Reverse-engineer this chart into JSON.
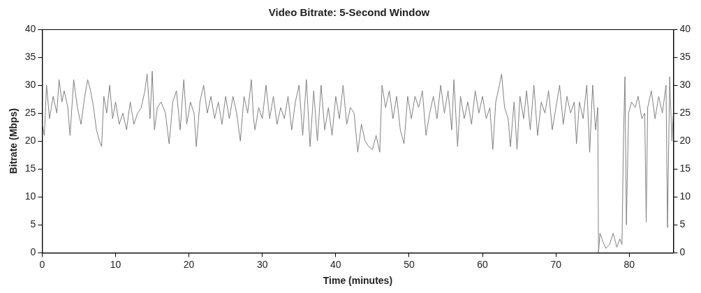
{
  "chart_data": {
    "type": "line",
    "title": "Video Bitrate: 5-Second Window",
    "xlabel": "Time (minutes)",
    "ylabel": "Bitrate (Mbps)",
    "xlim": [
      0,
      86
    ],
    "xticks": [
      0,
      10,
      20,
      30,
      40,
      50,
      60,
      70,
      80
    ],
    "ylim": [
      0,
      40
    ],
    "yticks": [
      0,
      5,
      10,
      15,
      20,
      25,
      30,
      35,
      40
    ],
    "y2lim": [
      0,
      40
    ],
    "y2ticks": [
      0,
      5,
      10,
      15,
      20,
      25,
      30,
      35,
      40
    ],
    "grid": false,
    "legend": false,
    "marker": "none",
    "line_style": "solid",
    "series": [
      {
        "color": "#808080",
        "x": [
          0,
          0.3,
          0.6,
          1,
          1.5,
          2,
          2.3,
          2.7,
          3,
          3.5,
          3.8,
          4.3,
          4.8,
          5.3,
          5.8,
          6.2,
          6.6,
          7,
          7.4,
          7.8,
          8.1,
          8.4,
          8.8,
          9.2,
          9.6,
          10,
          10.5,
          11,
          11.5,
          12,
          12.5,
          13,
          13.5,
          14,
          14.3,
          14.7,
          15,
          15.3,
          15.7,
          16.2,
          16.8,
          17.3,
          17.8,
          18.3,
          18.8,
          19.3,
          19.7,
          20.2,
          20.7,
          21,
          21.5,
          22,
          22.5,
          23,
          23.5,
          24,
          24.5,
          25,
          25.5,
          26,
          26.5,
          27,
          27.5,
          28,
          28.5,
          28.8,
          29,
          29.5,
          30,
          30.5,
          31,
          31.5,
          32,
          32.5,
          33,
          33.5,
          34,
          34.5,
          35,
          35.5,
          36,
          36.5,
          37,
          37.5,
          38,
          38.5,
          39,
          39.5,
          40,
          40.5,
          41,
          41.5,
          42,
          42.5,
          43,
          43.5,
          44,
          44.5,
          45,
          45.5,
          46,
          46.3,
          46.8,
          47.3,
          47.8,
          48.3,
          48.8,
          49.3,
          49.8,
          50.3,
          50.8,
          51.3,
          51.8,
          52.3,
          52.8,
          53.3,
          53.8,
          54.3,
          54.8,
          55.3,
          55.8,
          56.1,
          56.6,
          57,
          57.5,
          58,
          58.5,
          59,
          59.5,
          60,
          60.5,
          61,
          61.4,
          61.8,
          62.3,
          62.6,
          63,
          63.5,
          63.8,
          64.3,
          64.7,
          65.1,
          65.6,
          66,
          66.5,
          67,
          67.5,
          68,
          68.5,
          69,
          69.5,
          70,
          70.5,
          71,
          71.5,
          72,
          72.5,
          72.8,
          73.2,
          73.7,
          74.2,
          74.6,
          75,
          75.4,
          75.7,
          75.8,
          76,
          76.4,
          76.8,
          77.3,
          77.8,
          78.3,
          78.7,
          79,
          79.2,
          79.4,
          79.6,
          79.9,
          80.3,
          80.8,
          81.2,
          81.7,
          82.1,
          82.3,
          82.5,
          83,
          83.5,
          84,
          84.5,
          85,
          85.2,
          85.5,
          85.8,
          86
        ],
        "values": [
          23,
          21,
          30,
          24,
          28,
          25,
          31,
          27,
          29,
          26,
          21,
          31,
          26,
          23,
          28,
          31,
          29,
          26,
          22,
          20,
          19,
          28,
          25,
          30,
          24,
          27,
          23,
          25,
          22,
          27,
          23,
          25,
          26,
          29,
          32,
          24,
          32.5,
          22,
          26,
          27,
          25,
          19.5,
          27,
          29,
          22,
          31,
          23,
          27,
          25,
          19,
          27,
          30,
          25,
          28,
          24,
          27,
          23,
          28,
          24,
          28,
          25,
          20,
          28,
          25,
          31,
          24,
          22,
          26,
          24,
          30,
          24,
          28,
          23,
          26,
          24,
          28,
          22,
          27,
          30,
          21,
          31,
          19,
          29,
          20,
          30,
          22,
          26,
          21,
          28,
          24,
          30,
          23,
          26,
          25,
          18,
          23,
          20,
          19,
          18.5,
          21,
          18,
          30,
          26,
          29,
          24,
          28,
          22,
          19.5,
          28,
          24,
          28,
          26,
          29,
          21,
          25,
          28,
          24,
          30,
          25,
          29,
          22,
          31,
          19,
          28,
          24,
          27,
          23,
          29,
          25,
          28,
          24,
          26,
          18.5,
          27,
          30,
          32,
          26,
          24,
          19,
          27,
          18.5,
          28,
          24,
          29,
          22,
          30,
          21,
          27,
          25,
          29,
          22,
          26,
          30,
          23,
          28,
          25,
          27,
          19.5,
          27,
          24,
          30,
          18,
          30,
          22,
          26,
          0,
          3.5,
          2,
          0.8,
          1.5,
          3.5,
          1,
          2.5,
          1.5,
          20,
          31.5,
          5,
          25,
          27,
          26,
          28,
          24,
          25,
          5.5,
          26,
          29,
          24,
          28,
          25,
          30,
          4.5,
          31.5,
          20,
          25
        ]
      }
    ]
  }
}
